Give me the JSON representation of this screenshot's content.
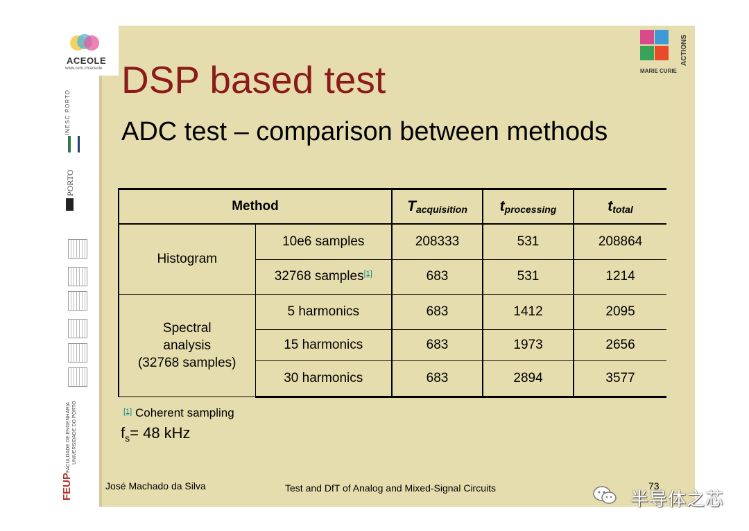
{
  "slide": {
    "title": "DSP based test",
    "subtitle": "ADC test – comparison between methods"
  },
  "logos": {
    "aceole_name": "ACEOLE",
    "aceole_url": "www.cern.ch/aceole",
    "inesc": "INESC PORTO",
    "uporto": "PORTO",
    "uporto_u": "U",
    "feup": "FEUP",
    "feup_full1": "FACULDADE DE ENGENHARIA",
    "feup_full2": "UNIVERSIDADE DO PORTO",
    "marie_curie_bottom": "MARIE CURIE",
    "marie_curie_side": "ACTIONS"
  },
  "table": {
    "headers": {
      "method": "Method",
      "t_acq_symbol": "T",
      "t_acq_sub": "acquisition",
      "t_proc_symbol": "t",
      "t_proc_sub": "processing",
      "t_total_symbol": "t",
      "t_total_sub": "total"
    },
    "groups": {
      "histogram": "Histogram",
      "spectral_1": "Spectral",
      "spectral_2": "analysis",
      "spectral_3": "(32768 samples)"
    },
    "rows": [
      {
        "method": "10e6 samples",
        "acq": "208333",
        "proc": "531",
        "total": "208864"
      },
      {
        "method": "32768 samples",
        "ref": "[1]",
        "acq": "683",
        "proc": "531",
        "total": "1214"
      },
      {
        "method": "5 harmonics",
        "acq": "683",
        "proc": "1412",
        "total": "2095"
      },
      {
        "method": "15 harmonics",
        "acq": "683",
        "proc": "1973",
        "total": "2656"
      },
      {
        "method": "30 harmonics",
        "acq": "683",
        "proc": "2894",
        "total": "3577"
      }
    ]
  },
  "footnote": {
    "ref": "[1]",
    "text": "Coherent sampling"
  },
  "fs": {
    "symbol": "f",
    "sub": "s",
    "value": "= 48 kHz"
  },
  "footer": {
    "author": "José Machado da Silva",
    "course": "Test and DfT of Analog and Mixed-Signal Circuits",
    "page": "73"
  },
  "watermark": "半导体之芯",
  "colors": {
    "slide_bg": "#e6ddae",
    "title": "#8b1a1a",
    "ref_link": "#0a8a8a"
  }
}
